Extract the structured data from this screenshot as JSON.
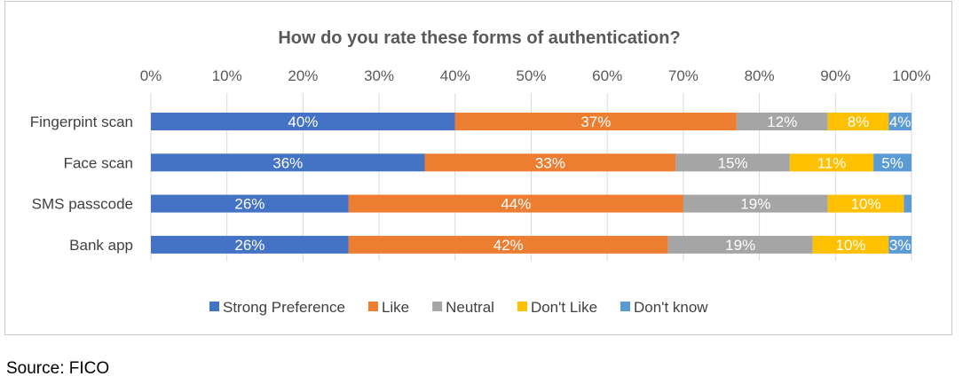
{
  "chart_data": {
    "type": "bar",
    "orientation": "horizontal",
    "stacked": "percent",
    "title": "How do you rate these forms of authentication?",
    "categories": [
      "Fingerpint scan",
      "Face scan",
      "SMS passcode",
      "Bank app"
    ],
    "series": [
      {
        "name": "Strong Preference",
        "color": "#4472C4",
        "values": [
          40,
          36,
          26,
          26
        ],
        "labels": [
          "40%",
          "36%",
          "26%",
          "26%"
        ]
      },
      {
        "name": "Like",
        "color": "#ED7D31",
        "values": [
          37,
          33,
          44,
          42
        ],
        "labels": [
          "37%",
          "33%",
          "44%",
          "42%"
        ]
      },
      {
        "name": "Neutral",
        "color": "#A5A5A5",
        "values": [
          12,
          15,
          19,
          19
        ],
        "labels": [
          "12%",
          "15%",
          "19%",
          "19%"
        ]
      },
      {
        "name": "Don't Like",
        "color": "#FFC000",
        "values": [
          8,
          11,
          10,
          10
        ],
        "labels": [
          "8%",
          "11%",
          "10%",
          "10%"
        ]
      },
      {
        "name": "Don't know",
        "color": "#5B9BD5",
        "values": [
          4,
          5,
          1,
          3
        ],
        "labels": [
          "4%",
          "5%",
          "",
          "3%"
        ]
      }
    ],
    "x_ticks": [
      "0%",
      "10%",
      "20%",
      "30%",
      "40%",
      "50%",
      "60%",
      "70%",
      "80%",
      "90%",
      "100%"
    ],
    "xlim": [
      0,
      100
    ],
    "grid": true,
    "legend": "bottom"
  },
  "source": "Source: FICO"
}
